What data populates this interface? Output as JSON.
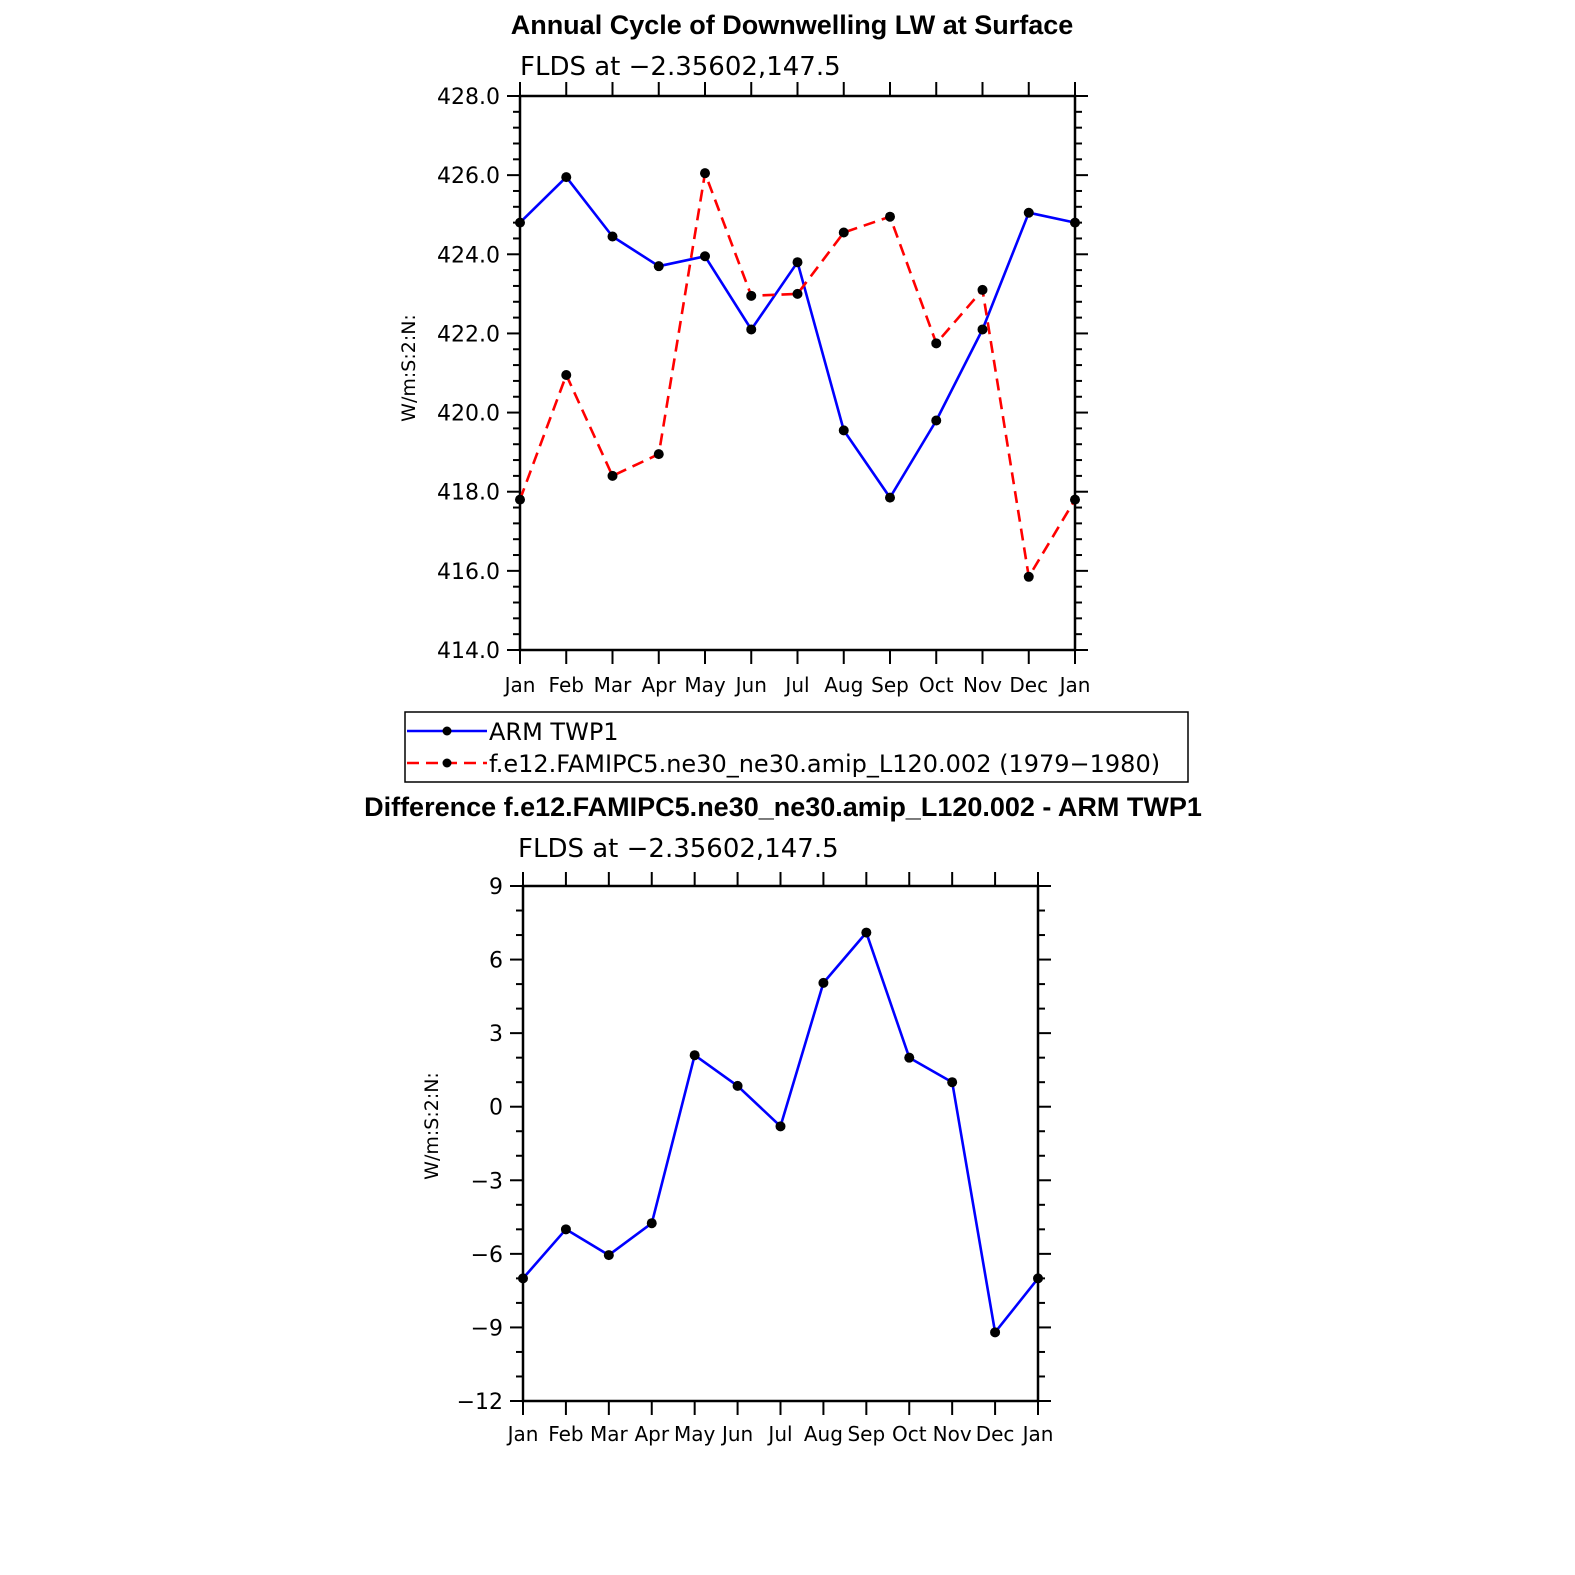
{
  "chart_data": [
    {
      "type": "line",
      "title": "Annual Cycle of Downwelling LW at Surface",
      "subtitle": "FLDS at −2.35602,147.5",
      "ylabel": "W/m:S:2:N:",
      "xlabel": "",
      "categories": [
        "Jan",
        "Feb",
        "Mar",
        "Apr",
        "May",
        "Jun",
        "Jul",
        "Aug",
        "Sep",
        "Oct",
        "Nov",
        "Dec",
        "Jan"
      ],
      "ylim": [
        414,
        428
      ],
      "yticks": [
        "414.0",
        "416.0",
        "418.0",
        "420.0",
        "422.0",
        "424.0",
        "426.0",
        "428.0"
      ],
      "grid": false,
      "legend_position": "below",
      "series": [
        {
          "name": "ARM TWP1",
          "color": "#0000ff",
          "dash": "solid",
          "values": [
            424.8,
            425.95,
            424.45,
            423.7,
            423.95,
            422.1,
            423.8,
            419.55,
            417.85,
            419.8,
            422.1,
            425.05,
            424.8
          ]
        },
        {
          "name": "f.e12.FAMIPC5.ne30_ne30.amip_L120.002 (1979−1980)",
          "color": "#ff0000",
          "dash": "dashed",
          "values": [
            417.8,
            420.95,
            418.4,
            418.95,
            426.05,
            422.95,
            423.0,
            424.55,
            424.95,
            421.75,
            423.1,
            415.85,
            417.8
          ]
        }
      ]
    },
    {
      "type": "line",
      "title": "Difference f.e12.FAMIPC5.ne30_ne30.amip_L120.002 - ARM TWP1",
      "subtitle": "FLDS at −2.35602,147.5",
      "ylabel": "W/m:S:2:N:",
      "xlabel": "",
      "categories": [
        "Jan",
        "Feb",
        "Mar",
        "Apr",
        "May",
        "Jun",
        "Jul",
        "Aug",
        "Sep",
        "Oct",
        "Nov",
        "Dec",
        "Jan"
      ],
      "ylim": [
        -12,
        9
      ],
      "yticks": [
        "−12",
        "−9",
        "−6",
        "−3",
        "0",
        "3",
        "6",
        "9"
      ],
      "grid": false,
      "series": [
        {
          "name": "",
          "color": "#0000ff",
          "dash": "solid",
          "values": [
            -7.0,
            -5.0,
            -6.05,
            -4.75,
            2.1,
            0.85,
            -0.8,
            5.05,
            7.1,
            2.0,
            1.0,
            -9.2,
            -7.0
          ]
        }
      ]
    }
  ]
}
